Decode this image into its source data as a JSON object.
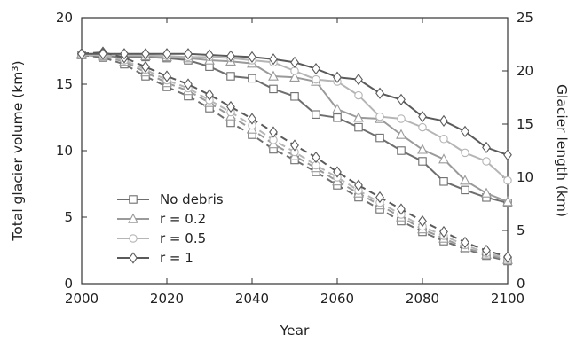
{
  "chart_data": {
    "type": "line",
    "xlabel": "Year",
    "ylabel_left": "Total glacier volume (km³)",
    "ylabel_right": "Glacier length (km)",
    "xlim": [
      2000,
      2100
    ],
    "ylim_left": [
      0,
      20
    ],
    "ylim_right": [
      0,
      25
    ],
    "xticks": [
      2000,
      2020,
      2040,
      2060,
      2080,
      2100
    ],
    "yticks_left": [
      0,
      5,
      10,
      15,
      20
    ],
    "yticks_right": [
      0,
      5,
      10,
      15,
      20,
      25
    ],
    "legend_position": "lower-left",
    "x": [
      2000,
      2005,
      2010,
      2015,
      2020,
      2025,
      2030,
      2035,
      2040,
      2045,
      2050,
      2055,
      2060,
      2065,
      2070,
      2075,
      2080,
      2085,
      2090,
      2095,
      2100
    ],
    "series": [
      {
        "name": "No debris",
        "marker": "square",
        "color": "#6e6e6e",
        "length": [
          21.5,
          21.4,
          21.3,
          21.3,
          21.2,
          21.0,
          20.4,
          19.5,
          19.3,
          18.3,
          17.6,
          15.9,
          15.6,
          14.7,
          13.7,
          12.5,
          11.5,
          9.6,
          8.8,
          8.1,
          7.6
        ],
        "volume": [
          17.2,
          17.0,
          16.5,
          15.6,
          14.8,
          14.1,
          13.2,
          12.1,
          11.2,
          10.1,
          9.3,
          8.4,
          7.4,
          6.5,
          5.6,
          4.7,
          3.9,
          3.2,
          2.6,
          2.1,
          1.7
        ]
      },
      {
        "name": "r = 0.2",
        "marker": "triangle",
        "color": "#9a9a9a",
        "length": [
          21.5,
          21.5,
          21.4,
          21.4,
          21.3,
          21.2,
          21.0,
          20.9,
          20.7,
          19.5,
          19.4,
          19.0,
          16.4,
          15.6,
          15.5,
          14.0,
          12.6,
          11.7,
          9.7,
          8.5,
          7.7
        ],
        "volume": [
          17.3,
          17.1,
          16.7,
          15.9,
          15.1,
          14.5,
          13.6,
          12.6,
          11.6,
          10.5,
          9.6,
          8.7,
          7.7,
          6.8,
          5.9,
          5.0,
          4.1,
          3.4,
          2.7,
          2.2,
          1.8
        ]
      },
      {
        "name": "r = 0.5",
        "marker": "circle",
        "color": "#b5b5b5",
        "length": [
          21.5,
          21.5,
          21.5,
          21.5,
          21.4,
          21.3,
          21.3,
          21.2,
          21.0,
          20.8,
          20.0,
          19.2,
          19.0,
          17.7,
          15.7,
          15.5,
          14.7,
          13.6,
          12.3,
          11.5,
          9.7
        ],
        "volume": [
          17.3,
          17.2,
          16.8,
          16.1,
          15.3,
          14.7,
          13.8,
          12.9,
          11.9,
          10.8,
          9.9,
          8.9,
          8.0,
          7.0,
          6.1,
          5.2,
          4.3,
          3.6,
          2.9,
          2.3,
          1.9
        ]
      },
      {
        "name": "r = 1",
        "marker": "diamond",
        "color": "#5a5a5a",
        "length": [
          21.6,
          21.6,
          21.6,
          21.6,
          21.6,
          21.6,
          21.5,
          21.4,
          21.3,
          21.1,
          20.8,
          20.2,
          19.4,
          19.2,
          17.9,
          17.3,
          15.7,
          15.3,
          14.3,
          12.8,
          12.1
        ],
        "volume": [
          17.3,
          17.4,
          17.0,
          16.3,
          15.6,
          15.0,
          14.2,
          13.3,
          12.4,
          11.4,
          10.4,
          9.5,
          8.4,
          7.4,
          6.5,
          5.6,
          4.7,
          3.9,
          3.1,
          2.5,
          2.0
        ]
      }
    ]
  }
}
